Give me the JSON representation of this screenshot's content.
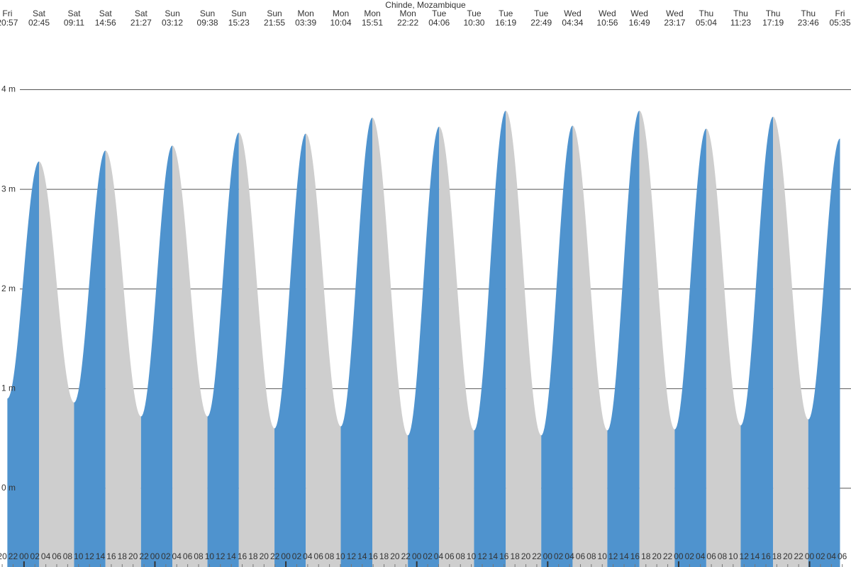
{
  "chart_data": {
    "type": "tide-area",
    "title": "Chinde, Mozambique",
    "days": [
      "Fri",
      "Sat",
      "Sat",
      "Sat",
      "Sat",
      "Sun",
      "Sun",
      "Sun",
      "Sun",
      "Mon",
      "Mon",
      "Mon",
      "Mon",
      "Tue",
      "Tue",
      "Tue",
      "Tue",
      "Wed",
      "Wed",
      "Wed",
      "Wed",
      "Thu",
      "Thu",
      "Thu",
      "Thu",
      "Fri"
    ],
    "times": [
      "20:57",
      "02:45",
      "09:11",
      "14:56",
      "21:27",
      "03:12",
      "09:38",
      "15:23",
      "21:55",
      "03:39",
      "10:04",
      "15:51",
      "22:22",
      "04:06",
      "10:30",
      "16:19",
      "22:49",
      "04:34",
      "10:56",
      "16:49",
      "23:17",
      "05:04",
      "11:23",
      "17:19",
      "23:46",
      "05:35"
    ],
    "x": [
      -3.05,
      2.75,
      9.183,
      14.933,
      21.45,
      27.2,
      33.633,
      39.383,
      45.917,
      51.65,
      58.067,
      63.85,
      70.367,
      76.1,
      82.5,
      88.317,
      94.817,
      100.567,
      106.933,
      112.817,
      119.283,
      125.067,
      131.383,
      137.317,
      143.767,
      149.583
    ],
    "values": [
      0.9,
      3.28,
      0.86,
      3.39,
      0.72,
      3.44,
      0.72,
      3.57,
      0.6,
      3.56,
      0.62,
      3.72,
      0.53,
      3.63,
      0.58,
      3.79,
      0.53,
      3.64,
      0.58,
      3.79,
      0.59,
      3.61,
      0.63,
      3.73,
      0.69,
      3.51
    ],
    "rising_color": "#4f93ce",
    "falling_color": "#cecece",
    "xlim": [
      -4.4,
      151.6
    ],
    "ylim": [
      -0.79,
      4.9
    ],
    "yticks": [
      {
        "value": 0,
        "label": "0 m"
      },
      {
        "value": 1,
        "label": "1 m"
      },
      {
        "value": 2,
        "label": "2 m"
      },
      {
        "value": 3,
        "label": "3 m"
      },
      {
        "value": 4,
        "label": "4 m"
      }
    ],
    "grid": true,
    "xticks": [
      {
        "value": -4,
        "label": "20"
      },
      {
        "value": -2,
        "label": "22"
      },
      {
        "value": 0,
        "label": "00"
      },
      {
        "value": 2,
        "label": "02"
      },
      {
        "value": 4,
        "label": "04"
      },
      {
        "value": 6,
        "label": "06"
      },
      {
        "value": 8,
        "label": "08"
      },
      {
        "value": 10,
        "label": "10"
      },
      {
        "value": 12,
        "label": "12"
      },
      {
        "value": 14,
        "label": "14"
      },
      {
        "value": 16,
        "label": "16"
      },
      {
        "value": 18,
        "label": "18"
      },
      {
        "value": 20,
        "label": "20"
      },
      {
        "value": 22,
        "label": "22"
      },
      {
        "value": 24,
        "label": "00"
      },
      {
        "value": 26,
        "label": "02"
      },
      {
        "value": 28,
        "label": "04"
      },
      {
        "value": 30,
        "label": "06"
      },
      {
        "value": 32,
        "label": "08"
      },
      {
        "value": 34,
        "label": "10"
      },
      {
        "value": 36,
        "label": "12"
      },
      {
        "value": 38,
        "label": "14"
      },
      {
        "value": 40,
        "label": "16"
      },
      {
        "value": 42,
        "label": "18"
      },
      {
        "value": 44,
        "label": "20"
      },
      {
        "value": 46,
        "label": "22"
      },
      {
        "value": 48,
        "label": "00"
      },
      {
        "value": 50,
        "label": "02"
      },
      {
        "value": 52,
        "label": "04"
      },
      {
        "value": 54,
        "label": "06"
      },
      {
        "value": 56,
        "label": "08"
      },
      {
        "value": 58,
        "label": "10"
      },
      {
        "value": 60,
        "label": "12"
      },
      {
        "value": 62,
        "label": "14"
      },
      {
        "value": 64,
        "label": "16"
      },
      {
        "value": 66,
        "label": "18"
      },
      {
        "value": 68,
        "label": "20"
      },
      {
        "value": 70,
        "label": "22"
      },
      {
        "value": 72,
        "label": "00"
      },
      {
        "value": 74,
        "label": "02"
      },
      {
        "value": 76,
        "label": "04"
      },
      {
        "value": 78,
        "label": "06"
      },
      {
        "value": 80,
        "label": "08"
      },
      {
        "value": 82,
        "label": "10"
      },
      {
        "value": 84,
        "label": "12"
      },
      {
        "value": 86,
        "label": "14"
      },
      {
        "value": 88,
        "label": "16"
      },
      {
        "value": 90,
        "label": "18"
      },
      {
        "value": 92,
        "label": "20"
      },
      {
        "value": 94,
        "label": "22"
      },
      {
        "value": 96,
        "label": "00"
      },
      {
        "value": 98,
        "label": "02"
      },
      {
        "value": 100,
        "label": "04"
      },
      {
        "value": 102,
        "label": "06"
      },
      {
        "value": 104,
        "label": "08"
      },
      {
        "value": 106,
        "label": "10"
      },
      {
        "value": 108,
        "label": "12"
      },
      {
        "value": 110,
        "label": "14"
      },
      {
        "value": 112,
        "label": "16"
      },
      {
        "value": 114,
        "label": "18"
      },
      {
        "value": 116,
        "label": "20"
      },
      {
        "value": 118,
        "label": "22"
      },
      {
        "value": 120,
        "label": "00"
      },
      {
        "value": 122,
        "label": "02"
      },
      {
        "value": 124,
        "label": "04"
      },
      {
        "value": 126,
        "label": "06"
      },
      {
        "value": 128,
        "label": "08"
      },
      {
        "value": 130,
        "label": "10"
      },
      {
        "value": 132,
        "label": "12"
      },
      {
        "value": 134,
        "label": "14"
      },
      {
        "value": 136,
        "label": "16"
      },
      {
        "value": 138,
        "label": "18"
      },
      {
        "value": 140,
        "label": "20"
      },
      {
        "value": 142,
        "label": "22"
      },
      {
        "value": 144,
        "label": "00"
      },
      {
        "value": 146,
        "label": "02"
      },
      {
        "value": 148,
        "label": "04"
      },
      {
        "value": 150,
        "label": "06"
      }
    ]
  }
}
